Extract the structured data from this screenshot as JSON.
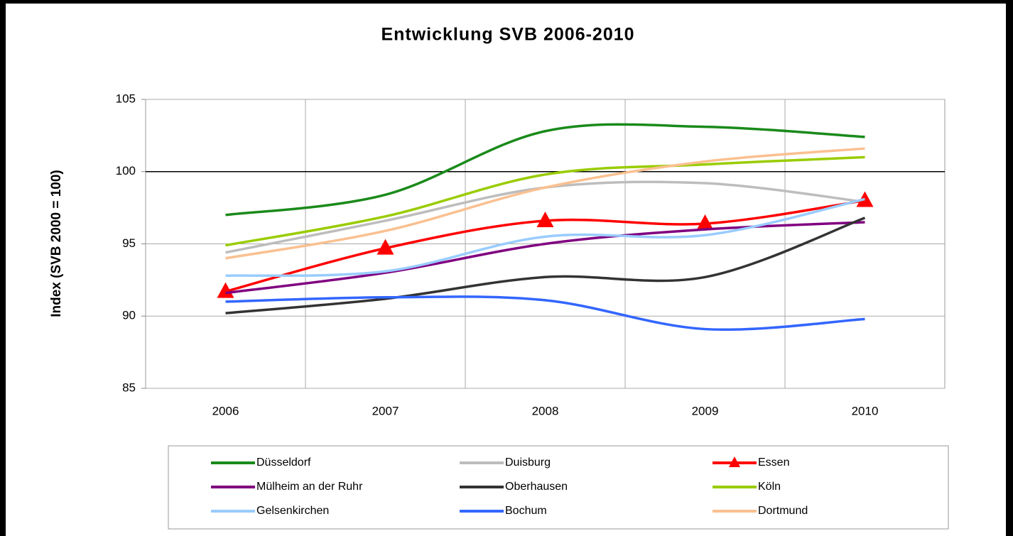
{
  "chart_data": {
    "type": "line",
    "title": "Entwicklung SVB 2006-2010",
    "y_label": "Index (SVB 2000 = 100)",
    "categories": [
      "2006",
      "2007",
      "2008",
      "2009",
      "2010"
    ],
    "ylim": [
      85,
      105
    ],
    "yticks": [
      85,
      90,
      95,
      100,
      105
    ],
    "grid": true,
    "x_axis_crosses_at": 100,
    "smooth": true,
    "legend": "bottom",
    "series": [
      {
        "name": "Düsseldorf",
        "color": "#1a8a1a",
        "values": [
          97.0,
          98.4,
          102.8,
          103.1,
          102.4
        ]
      },
      {
        "name": "Duisburg",
        "color": "#bdbdbd",
        "values": [
          94.4,
          96.6,
          98.9,
          99.2,
          97.9
        ]
      },
      {
        "name": "Essen",
        "color": "#ff0000",
        "marker": "triangle",
        "values": [
          91.7,
          94.7,
          96.6,
          96.4,
          98.0
        ]
      },
      {
        "name": "Mülheim an der Ruhr",
        "color": "#800080",
        "values": [
          91.6,
          93.0,
          95.0,
          96.0,
          96.5
        ]
      },
      {
        "name": "Oberhausen",
        "color": "#333333",
        "values": [
          90.2,
          91.2,
          92.7,
          92.7,
          96.8
        ]
      },
      {
        "name": "Köln",
        "color": "#99cc00",
        "values": [
          94.9,
          96.9,
          99.8,
          100.5,
          101.0
        ]
      },
      {
        "name": "Gelsenkirchen",
        "color": "#99ccff",
        "values": [
          92.8,
          93.1,
          95.5,
          95.6,
          98.1
        ]
      },
      {
        "name": "Bochum",
        "color": "#3366ff",
        "values": [
          91.0,
          91.3,
          91.1,
          89.1,
          89.8
        ]
      },
      {
        "name": "Dortmund",
        "color": "#fac090",
        "values": [
          94.0,
          95.9,
          98.9,
          100.7,
          101.6
        ]
      }
    ]
  }
}
